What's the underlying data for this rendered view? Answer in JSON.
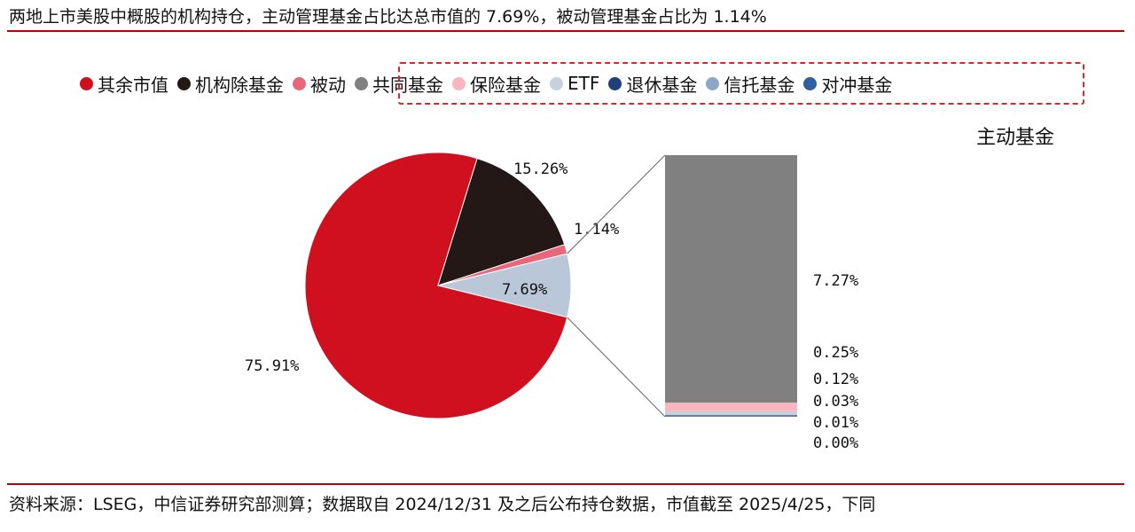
{
  "title": "两地上市美股中概股的机构持仓，主动管理基金占比达总市值的 7.69%，被动管理基金占比为 1.14%",
  "source": "资料来源：LSEG，中信证券研究部测算；数据取自 2024/12/31 及之后公布持仓数据，市值截至 2025/4/25，下同",
  "chart_data": [
    {
      "type": "pie",
      "categories": [
        "其余市值",
        "机构除基金",
        "被动",
        "主动基金"
      ],
      "values": [
        75.91,
        15.26,
        1.14,
        7.69
      ],
      "labels": [
        "75.91%",
        "15.26%",
        "1.14%",
        "7.69%"
      ],
      "colors": [
        "#d0101f",
        "#231815",
        "#e8677b",
        "#b9c7d9"
      ]
    },
    {
      "type": "bar",
      "stacked": true,
      "title": "主动基金",
      "categories": [
        "共同基金",
        "保险基金",
        "ETF",
        "退休基金",
        "信托基金",
        "对冲基金"
      ],
      "values": [
        7.27,
        0.25,
        0.12,
        0.03,
        0.01,
        0.0
      ],
      "labels": [
        "7.27%",
        "0.25%",
        "0.12%",
        "0.03%",
        "0.01%",
        "0.00%"
      ],
      "colors": [
        "#808080",
        "#f7b6c0",
        "#c8d0dc",
        "#1f3f7a",
        "#8ea7c6",
        "#2f5fa0"
      ]
    }
  ],
  "legend": [
    {
      "label": "其余市值",
      "color": "#d0101f"
    },
    {
      "label": "机构除基金",
      "color": "#231815"
    },
    {
      "label": "被动",
      "color": "#e8677b"
    },
    {
      "label": "共同基金",
      "color": "#808080"
    },
    {
      "label": "保险基金",
      "color": "#f7b6c0"
    },
    {
      "label": "ETF",
      "color": "#c8d0dc"
    },
    {
      "label": "退休基金",
      "color": "#1f3f7a"
    },
    {
      "label": "信托基金",
      "color": "#8ea7c6"
    },
    {
      "label": "对冲基金",
      "color": "#2f5fa0"
    }
  ]
}
